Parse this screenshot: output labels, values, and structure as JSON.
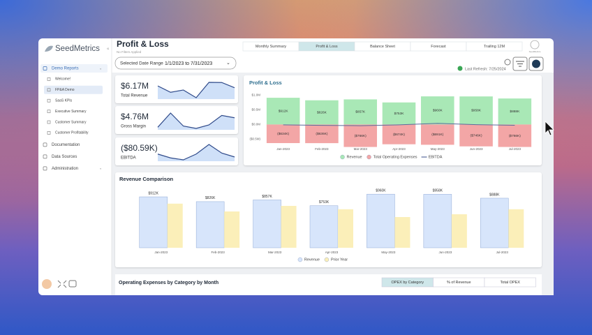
{
  "sidebar": {
    "brand": "SeedMetrics",
    "active_group": 0,
    "active_child": 1,
    "menu": [
      {
        "label": "Demo Reports",
        "children": [
          "Welcome!",
          "FP&A Demo",
          "SaaS KPIs",
          "Executive Summary",
          "Customer Summary",
          "Customer Profitability"
        ]
      },
      {
        "label": "Documentation"
      },
      {
        "label": "Data Sources"
      },
      {
        "label": "Administration"
      }
    ]
  },
  "header": {
    "title": "Profit & Loss",
    "subtitle": "No Filters Applied",
    "active_tab": 1,
    "tabs": [
      "Monthly Summary",
      "Profit & Loss",
      "Balance Sheet",
      "Forecast",
      "Trailing 12M"
    ]
  },
  "date_range": {
    "label": "Selected Date Range",
    "value": "1/1/2023 to 7/31/2023"
  },
  "last_refresh": "Last Refresh: 7/25/2024",
  "kpis": [
    {
      "value": "$6.17M",
      "label": "Total Revenue",
      "trend": [
        912000,
        826000,
        857000,
        753000,
        960000,
        958000,
        888000
      ]
    },
    {
      "value": "$4.76M",
      "label": "Gross Margin",
      "trend": [
        600000,
        720000,
        610000,
        590000,
        620000,
        700000,
        680000
      ]
    },
    {
      "value": "($80.59K)",
      "label": "EBITDA",
      "trend": [
        -10000,
        -30000,
        -40000,
        -10000,
        40000,
        -5000,
        -25000
      ]
    }
  ],
  "chart_data": [
    {
      "type": "bar",
      "title": "Profit & Loss",
      "categories": [
        "Jan-2023",
        "Feb-2023",
        "Mar-2023",
        "Apr-2023",
        "May-2023",
        "Jun-2023",
        "Jul-2023"
      ],
      "series": [
        {
          "name": "Revenue",
          "color": "#a9e8b6",
          "values": [
            912000,
            826000,
            857000,
            753000,
            960000,
            958000,
            888000
          ],
          "value_labels": [
            "$912K",
            "$826K",
            "$857K",
            "$753K",
            "$960K",
            "$958K",
            "$888K"
          ]
        },
        {
          "name": "Total Operating Expenses",
          "color": "#f3a6a6",
          "values": [
            -634000,
            -636000,
            -766000,
            -674000,
            -691000,
            -746000,
            -766000
          ],
          "value_labels": [
            "($634K)",
            "($636K)",
            "($766K)",
            "($674K)",
            "($691K)",
            "($746K)",
            "($766K)"
          ]
        },
        {
          "name": "EBITDA",
          "type": "line",
          "color": "#5b6b9c",
          "values": [
            -10000,
            -30000,
            -40000,
            -10000,
            40000,
            -5000,
            -25000
          ]
        }
      ],
      "ylim": [
        -800000,
        1200000
      ],
      "yticks": [
        {
          "value": 1000000,
          "label": "$1.0M"
        },
        {
          "value": 500000,
          "label": "$0.5M"
        },
        {
          "value": 0,
          "label": "$0.0M"
        },
        {
          "value": -500000,
          "label": "($0.5M)"
        }
      ],
      "legend": "bottom"
    },
    {
      "type": "bar",
      "title": "Revenue Comparison",
      "categories": [
        "Jan-2023",
        "Feb-2023",
        "Mar-2023",
        "Apr-2023",
        "May-2023",
        "Jun-2023",
        "Jul-2023"
      ],
      "series": [
        {
          "name": "Revenue",
          "color": "#d7e5fb",
          "values": [
            912000,
            826000,
            857000,
            753000,
            960000,
            958000,
            888000
          ],
          "value_labels": [
            "$912K",
            "$826K",
            "$857K",
            "$753K",
            "$960K",
            "$958K",
            "$888K"
          ]
        },
        {
          "name": "Prior Year",
          "color": "#fbefb9",
          "values": [
            790000,
            650000,
            750000,
            690000,
            550000,
            600000,
            690000
          ]
        }
      ],
      "ylim": [
        0,
        1000000
      ],
      "legend": "bottom"
    }
  ],
  "opex": {
    "title": "Operating Expenses by Category by Month",
    "active": 0,
    "options": [
      "OPEX by Category",
      "% of Revenue",
      "Total OPEX"
    ]
  }
}
